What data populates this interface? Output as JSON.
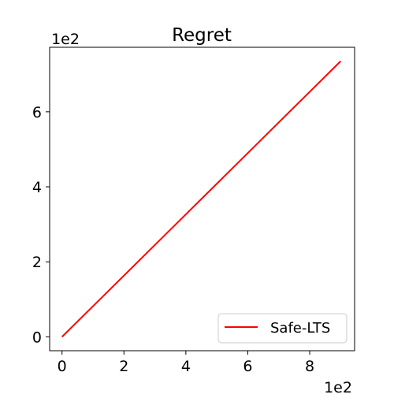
{
  "chart_data": {
    "type": "line",
    "title": "Regret",
    "xlabel": "",
    "ylabel": "",
    "x_tick_labels": [
      "0",
      "2",
      "4",
      "6",
      "8"
    ],
    "x_ticks": [
      0,
      2,
      4,
      6,
      8
    ],
    "y_tick_labels": [
      "0",
      "2",
      "4",
      "6"
    ],
    "y_ticks": [
      0,
      2,
      4,
      6
    ],
    "x_offset_label": "1e2",
    "y_offset_label": "1e2",
    "xlim": [
      -0.4,
      9.45
    ],
    "ylim": [
      -0.37,
      7.72
    ],
    "grid": false,
    "legend_position": "bottom-right",
    "series": [
      {
        "name": "Safe-LTS",
        "color": "#ff0000",
        "x": [
          0,
          9.0
        ],
        "y": [
          0,
          7.35
        ]
      }
    ]
  }
}
